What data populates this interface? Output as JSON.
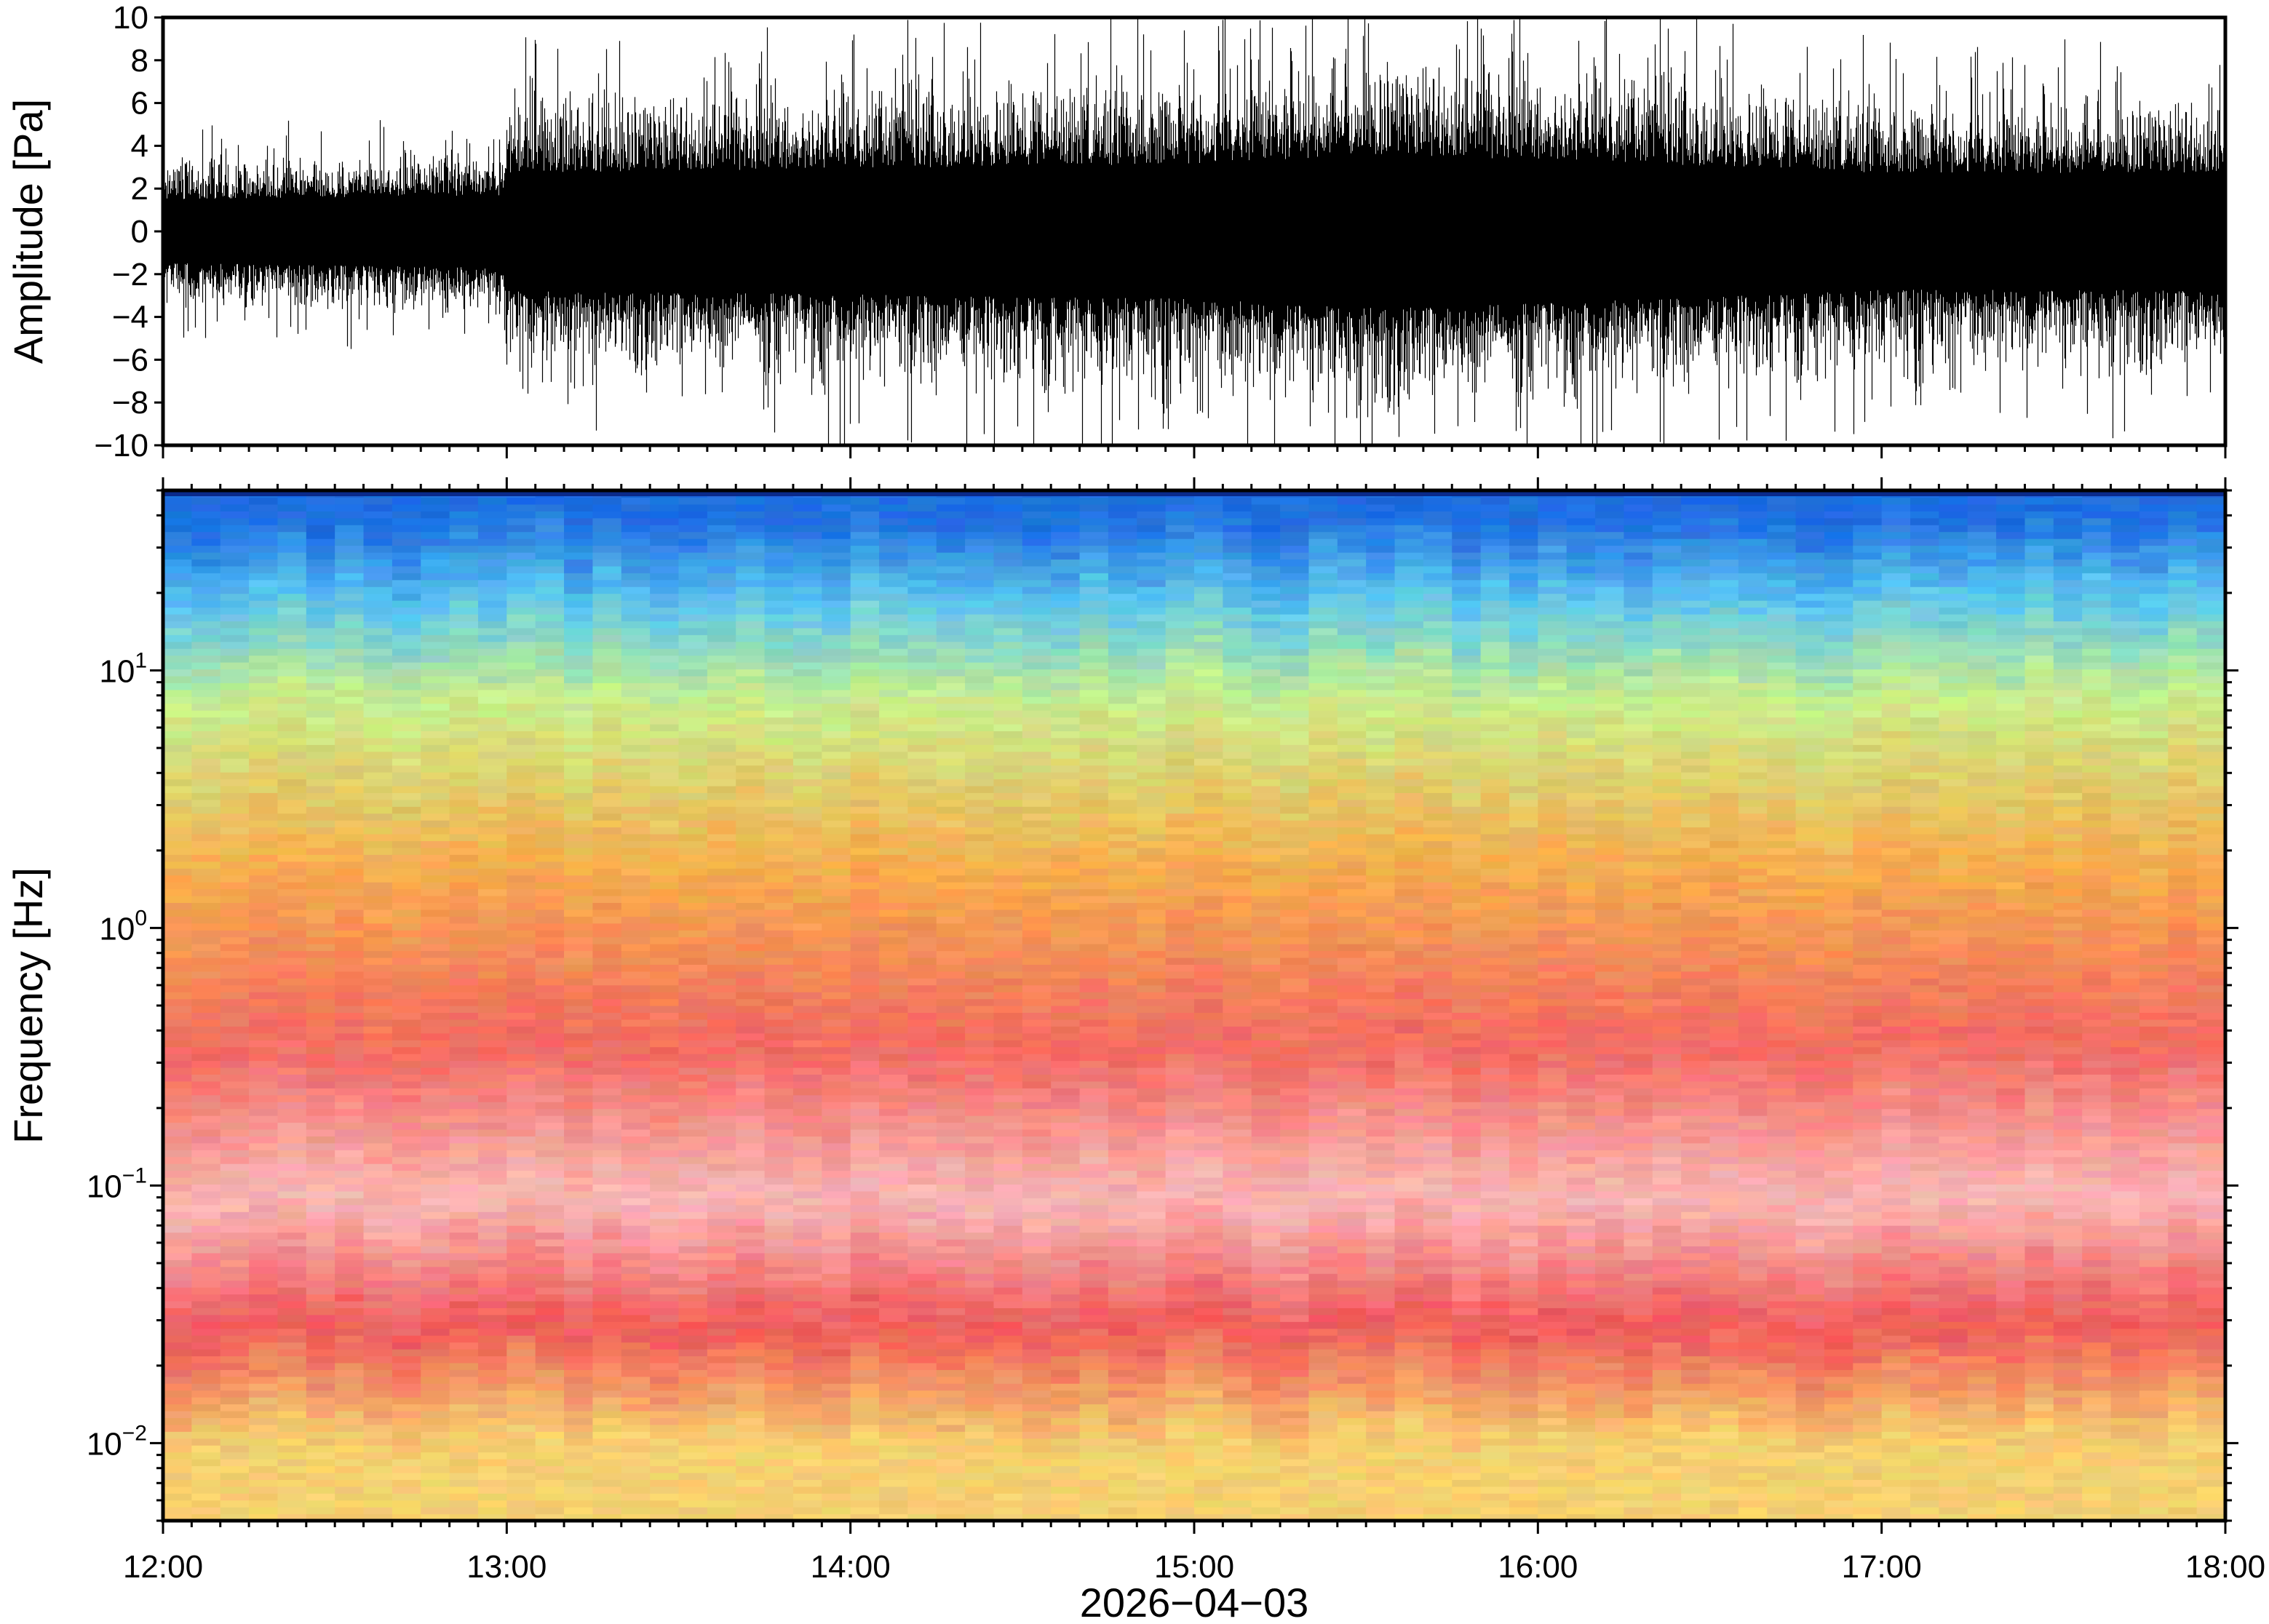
{
  "chart_data": [
    {
      "type": "line",
      "panel": "waveform",
      "ylabel": "Amplitude [Pa]",
      "ylim": [
        -10,
        10
      ],
      "yticks": [
        10,
        8,
        6,
        4,
        2,
        0,
        -2,
        -4,
        -6,
        -8,
        -10
      ],
      "ytick_labels": [
        "10",
        "8",
        "6",
        "4",
        "2",
        "0",
        "−2",
        "−4",
        "−6",
        "−8",
        "−10"
      ],
      "series": [
        {
          "time": [
            "12:00",
            "12:30",
            "12:59",
            "13:00",
            "14:00",
            "15:00",
            "15:30",
            "16:00",
            "17:00",
            "18:00"
          ],
          "envelope_min": [
            -3.5,
            -4.0,
            -4.0,
            -6.5,
            -7.5,
            -8.0,
            -9.0,
            -8.0,
            -7.0,
            -7.0
          ],
          "envelope_max": [
            3.5,
            3.8,
            4.0,
            6.5,
            7.0,
            7.5,
            8.5,
            8.0,
            6.5,
            6.5
          ],
          "color": "#000000"
        }
      ],
      "xlim": [
        "12:00",
        "18:00"
      ]
    },
    {
      "type": "heatmap",
      "panel": "spectrogram",
      "ylabel": "Frequency [Hz]",
      "yscale": "log",
      "ylim": [
        0.005,
        50
      ],
      "yticks": [
        0.01,
        0.1,
        1,
        10
      ],
      "ytick_labels": [
        {
          "base": "10",
          "exp": "−2"
        },
        {
          "base": "10",
          "exp": "−1"
        },
        {
          "base": "10",
          "exp": "0"
        },
        {
          "base": "10",
          "exp": "1"
        }
      ],
      "xlim": [
        "12:00",
        "18:00"
      ],
      "xticks": [
        "12:00",
        "13:00",
        "14:00",
        "15:00",
        "16:00",
        "17:00",
        "18:00"
      ],
      "xlabel": "2026−04−03",
      "colormap": "blue → cyan → yellow-green → orange → red → light pink",
      "frequency_bands": [
        {
          "hz_range": [
            30,
            50
          ],
          "color": "#1e6fe0"
        },
        {
          "hz_range": [
            12,
            30
          ],
          "color": "#5cc6ef"
        },
        {
          "hz_range": [
            5,
            12
          ],
          "color": "#c9ef8c"
        },
        {
          "hz_range": [
            0.6,
            5
          ],
          "color": "#f6ad4e"
        },
        {
          "hz_range": [
            0.2,
            0.6
          ],
          "color": "#f26a62"
        },
        {
          "hz_range": [
            0.04,
            0.2
          ],
          "color": "#f8b8b6"
        },
        {
          "hz_range": [
            0.02,
            0.04
          ],
          "color": "#ef5a5a"
        },
        {
          "hz_range": [
            0.005,
            0.02
          ],
          "color": "#f5d070"
        }
      ]
    }
  ]
}
